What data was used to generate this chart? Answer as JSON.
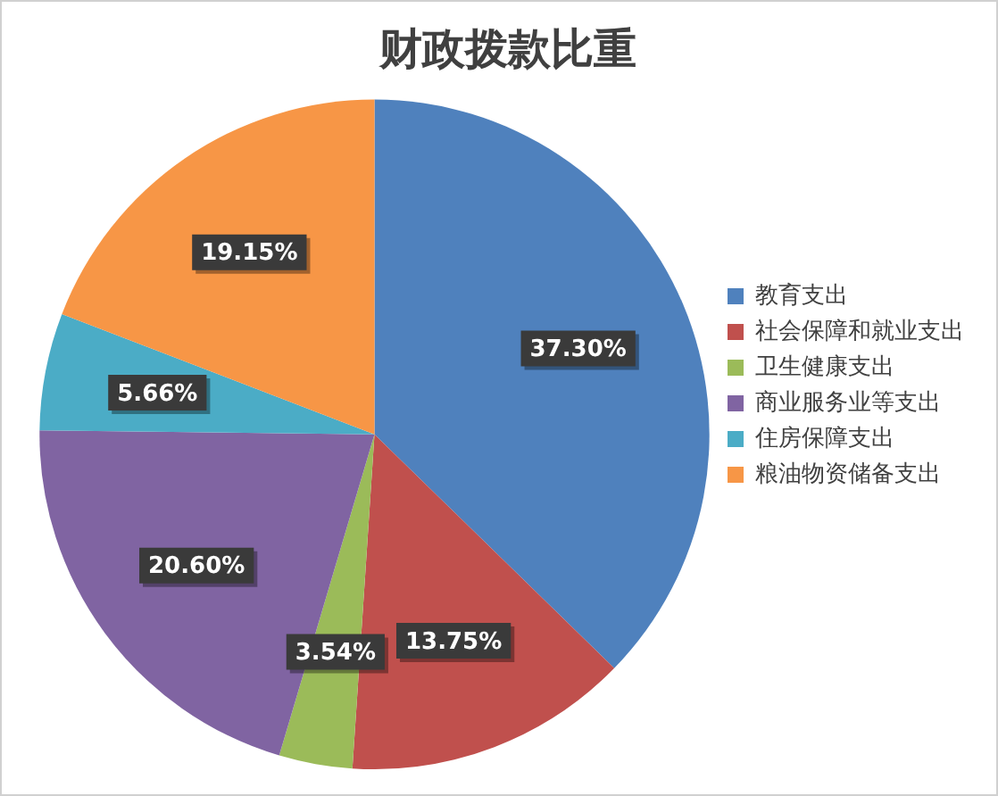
{
  "chart_data": {
    "type": "pie",
    "title": "财政拨款比重",
    "categories": [
      "教育支出",
      "社会保障和就业支出",
      "卫生健康支出",
      "商业服务业等支出",
      "住房保障支出",
      "粮油物资储备支出"
    ],
    "values": [
      37.3,
      13.75,
      3.54,
      20.6,
      5.66,
      19.15
    ],
    "colors": [
      "#4f81bd",
      "#c0504d",
      "#9bbb59",
      "#8064a2",
      "#4bacc6",
      "#f79646"
    ],
    "value_labels": [
      "37.30%",
      "13.75%",
      "3.54%",
      "20.60%",
      "5.66%",
      "19.15%"
    ],
    "legend": "right"
  }
}
